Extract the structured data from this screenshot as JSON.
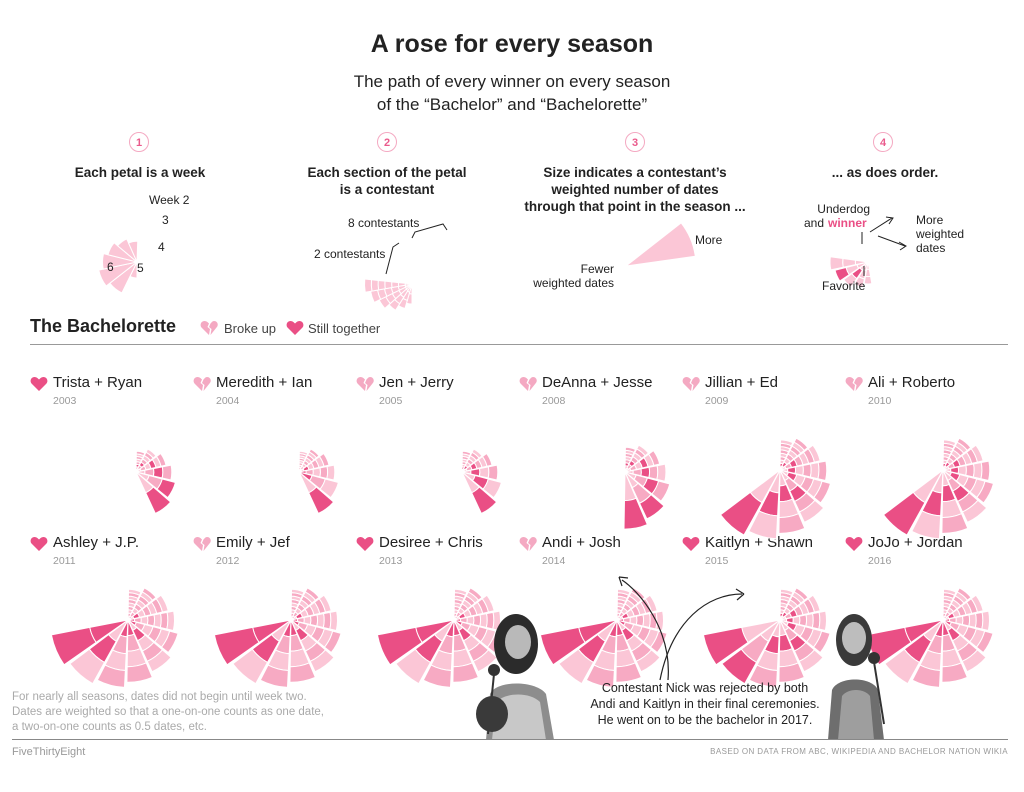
{
  "header": {
    "title": "A rose for every season",
    "subtitle_line1": "The path of every winner on every season",
    "subtitle_line2": "of the “Bachelor” and “Bachelorette”"
  },
  "steps": [
    {
      "num": "1",
      "heading": [
        "Each petal is a week"
      ]
    },
    {
      "num": "2",
      "heading": [
        "Each section of the petal",
        "is a contestant"
      ]
    },
    {
      "num": "3",
      "heading": [
        "Size indicates a contestant’s",
        "weighted number of dates",
        "through that point in the season ..."
      ]
    },
    {
      "num": "4",
      "heading": [
        "... as does order."
      ]
    }
  ],
  "step_annotations": {
    "week2": "Week 2",
    "w3": "3",
    "w4": "4",
    "w5": "5",
    "w6": "6",
    "eight_contestants": "8 contestants",
    "two_contestants": "2 contestants",
    "more": "More",
    "fewer_line1": "Fewer",
    "fewer_line2": "weighted dates",
    "underdog_line1": "Underdog",
    "underdog_and": "and",
    "underdog_winner": "winner",
    "more_weighted_line1": "More",
    "more_weighted_line2": "weighted",
    "more_weighted_line3": "dates",
    "favorite": "Favorite"
  },
  "section": {
    "title": "The Bachelorette",
    "legend_broke_up": "Broke up",
    "legend_together": "Still together"
  },
  "colors": {
    "winner": "#ea4f85",
    "contestant": "#fbc6d6",
    "contestant_alt": "#f7aac3",
    "heart": "#ea4f85",
    "broken_heart": "#f4a9c2"
  },
  "chart_data": {
    "type": "radial-petal",
    "seasons": [
      {
        "couple": "Trista + Ryan",
        "year": "2003",
        "status": "together",
        "weeks": 6,
        "contestants_start": 8,
        "winner_rank": 3
      },
      {
        "couple": "Meredith + Ian",
        "year": "2004",
        "status": "broke_up",
        "weeks": 6,
        "contestants_start": 9,
        "winner_rank": 1
      },
      {
        "couple": "Jen + Jerry",
        "year": "2005",
        "status": "broke_up",
        "weeks": 6,
        "contestants_start": 8,
        "winner_rank": 2
      },
      {
        "couple": "DeAnna + Jesse",
        "year": "2008",
        "status": "broke_up",
        "weeks": 7,
        "contestants_start": 8,
        "winner_rank": 3
      },
      {
        "couple": "Jillian + Ed",
        "year": "2009",
        "status": "broke_up",
        "weeks": 9,
        "contestants_start": 9,
        "winner_rank": 2
      },
      {
        "couple": "Ali + Roberto",
        "year": "2010",
        "status": "broke_up",
        "weeks": 9,
        "contestants_start": 9,
        "winner_rank": 2
      },
      {
        "couple": "Ashley + J.P.",
        "year": "2011",
        "status": "together",
        "weeks": 10,
        "contestants_start": 9,
        "winner_rank": 1
      },
      {
        "couple": "Emily + Jef",
        "year": "2012",
        "status": "broke_up",
        "weeks": 10,
        "contestants_start": 9,
        "winner_rank": 1
      },
      {
        "couple": "Desiree + Chris",
        "year": "2013",
        "status": "together",
        "weeks": 10,
        "contestants_start": 9,
        "winner_rank": 1
      },
      {
        "couple": "Andi + Josh",
        "year": "2014",
        "status": "broke_up",
        "weeks": 10,
        "contestants_start": 9,
        "winner_rank": 1
      },
      {
        "couple": "Kaitlyn + Shawn",
        "year": "2015",
        "status": "together",
        "weeks": 10,
        "contestants_start": 9,
        "winner_rank": 2
      },
      {
        "couple": "JoJo + Jordan",
        "year": "2016",
        "status": "together",
        "weeks": 10,
        "contestants_start": 9,
        "winner_rank": 1
      }
    ]
  },
  "notes": {
    "method_line1": "For nearly all seasons, dates did not begin until week two.",
    "method_line2": "Dates are weighted so that a one-on-one counts as one date,",
    "method_line3": "a two-on-one counts as 0.5 dates, etc.",
    "callout_line1": "Contestant Nick was rejected by both",
    "callout_line2": "Andi and Kaitlyn in their final ceremonies.",
    "callout_line3": "He went on to be the bachelor in 2017."
  },
  "footer": {
    "brand": "FiveThirtyEight",
    "source": "BASED ON DATA FROM ABC, WIKIPEDIA AND BACHELOR NATION WIKIA"
  }
}
